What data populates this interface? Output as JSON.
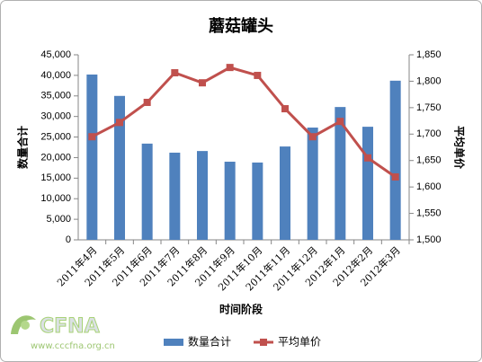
{
  "chart_data": {
    "type": "bar",
    "title": "蘑菇罐头",
    "x_label": "时间阶段",
    "y_label": "数量合计",
    "y2_label": "平均单价",
    "categories": [
      "2011年4月",
      "2011年5月",
      "2011年6月",
      "2011年7月",
      "2011年8月",
      "2011年9月",
      "2011年10月",
      "2011年11月",
      "2011年12月",
      "2012年1月",
      "2012年2月",
      "2012年3月"
    ],
    "series": [
      {
        "name": "数量合计",
        "type": "bar",
        "color": "#4f81bd",
        "axis": "y",
        "values": [
          40200,
          35000,
          23400,
          21200,
          21600,
          19000,
          18800,
          22700,
          27300,
          32300,
          27500,
          38700
        ]
      },
      {
        "name": "平均单价",
        "type": "line",
        "color": "#c0504d",
        "axis": "y2",
        "values": [
          1695,
          1722,
          1760,
          1816,
          1797,
          1826,
          1811,
          1748,
          1695,
          1724,
          1655,
          1619
        ]
      }
    ],
    "ylim": [
      0,
      45000
    ],
    "yticks": [
      0,
      {
        "value": 5000,
        "label": "5,000"
      },
      {
        "value": 10000,
        "label": "10,000"
      },
      {
        "value": 15000,
        "label": "15,000"
      },
      {
        "value": 20000,
        "label": "20,000"
      },
      {
        "value": 25000,
        "label": "25,000"
      },
      {
        "value": 30000,
        "label": "30,000"
      },
      {
        "value": 35000,
        "label": "35,000"
      },
      {
        "value": 40000,
        "label": "40,000"
      },
      {
        "value": 45000,
        "label": "45,000"
      }
    ],
    "y2lim": [
      1500,
      1850
    ],
    "y2ticks": [
      {
        "value": 1500,
        "label": "1,500"
      },
      {
        "value": 1550,
        "label": "1,550"
      },
      {
        "value": 1600,
        "label": "1,600"
      },
      {
        "value": 1650,
        "label": "1,650"
      },
      {
        "value": 1700,
        "label": "1,700"
      },
      {
        "value": 1750,
        "label": "1,750"
      },
      {
        "value": 1800,
        "label": "1,800"
      },
      {
        "value": 1850,
        "label": "1,850"
      }
    ],
    "grid": false,
    "legend": "bottom",
    "watermark": {
      "logo": "CFNA",
      "url": "www.cccfna.org.cn"
    }
  }
}
